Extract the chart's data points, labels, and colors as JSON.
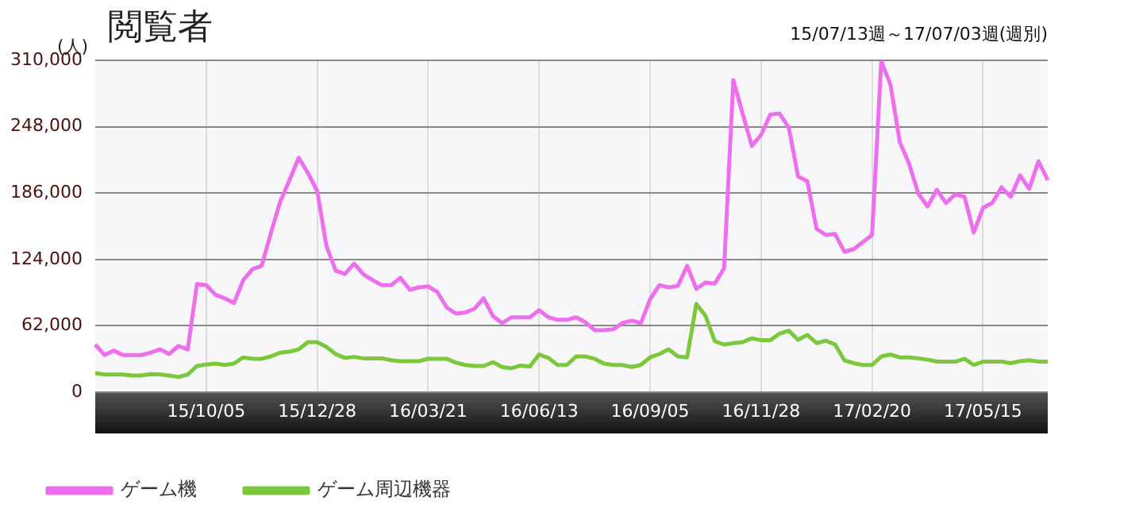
{
  "chart_data": {
    "type": "line",
    "title": "閲覧者",
    "subtitle": "15/07/13週～17/07/03週(週別)",
    "ylabel": "(人)",
    "categories": [
      null,
      null,
      null,
      null,
      null,
      null,
      null,
      null,
      null,
      null,
      null,
      null,
      "15/10/05",
      null,
      null,
      null,
      null,
      null,
      null,
      null,
      null,
      null,
      null,
      null,
      "15/12/28",
      null,
      null,
      null,
      null,
      null,
      null,
      null,
      null,
      null,
      null,
      null,
      "16/03/21",
      null,
      null,
      null,
      null,
      null,
      null,
      null,
      null,
      null,
      null,
      null,
      "16/06/13",
      null,
      null,
      null,
      null,
      null,
      null,
      null,
      null,
      null,
      null,
      null,
      "16/09/05",
      null,
      null,
      null,
      null,
      null,
      null,
      null,
      null,
      null,
      null,
      null,
      "16/11/28",
      null,
      null,
      null,
      null,
      null,
      null,
      null,
      null,
      null,
      null,
      null,
      "17/02/20",
      null,
      null,
      null,
      null,
      null,
      null,
      null,
      null,
      null,
      null,
      null,
      "17/05/15",
      null,
      null,
      null,
      null,
      null,
      null,
      null
    ],
    "series": [
      {
        "name": "ゲーム機",
        "color": "#ee6eee",
        "values": [
          44500,
          34700,
          38700,
          34700,
          34700,
          34700,
          37000,
          40000,
          35600,
          43200,
          40000,
          101000,
          100000,
          91000,
          87700,
          83200,
          104600,
          114800,
          118000,
          149000,
          178000,
          198000,
          219000,
          204700,
          188000,
          136600,
          113500,
          110400,
          120000,
          110000,
          104600,
          100000,
          100000,
          106800,
          95700,
          97900,
          98800,
          93500,
          79200,
          73400,
          74300,
          77900,
          87700,
          71200,
          64500,
          69900,
          69900,
          69900,
          76500,
          69900,
          67600,
          67600,
          69900,
          65400,
          57900,
          57900,
          58700,
          64500,
          66800,
          64500,
          86800,
          100000,
          97900,
          99200,
          118000,
          96600,
          102400,
          101500,
          115700,
          291500,
          260300,
          230000,
          240300,
          259400,
          260300,
          247000,
          201600,
          197100,
          152600,
          146900,
          147700,
          131300,
          133500,
          140200,
          146900,
          309300,
          287000,
          233600,
          213600,
          185600,
          173500,
          189100,
          176700,
          184700,
          182500,
          149000,
          172200,
          176700,
          191400,
          182500,
          202500,
          190000,
          215800,
          198000
        ]
      },
      {
        "name": "ゲーム周辺機器",
        "color": "#7cc83c",
        "values": [
          17800,
          16500,
          16500,
          16500,
          15600,
          15600,
          16900,
          16500,
          15600,
          14200,
          16500,
          24500,
          25800,
          26700,
          25400,
          26700,
          32500,
          31200,
          31200,
          33400,
          36900,
          37800,
          40000,
          46700,
          46700,
          42300,
          35600,
          32000,
          32900,
          31600,
          31600,
          31600,
          29800,
          28900,
          28900,
          28900,
          31200,
          31200,
          31200,
          27600,
          25400,
          24500,
          24500,
          28000,
          23600,
          22300,
          24900,
          24000,
          35200,
          32000,
          25400,
          25400,
          33400,
          33400,
          31200,
          26700,
          25400,
          25400,
          23600,
          25400,
          32500,
          35600,
          40000,
          33400,
          32500,
          82300,
          71200,
          47600,
          44500,
          45800,
          46700,
          50300,
          48500,
          48500,
          54700,
          57400,
          48900,
          53400,
          45800,
          48100,
          44500,
          29800,
          27100,
          25400,
          25400,
          33400,
          35200,
          32500,
          32500,
          31600,
          30300,
          28500,
          28500,
          28500,
          31200,
          25400,
          28500,
          28500,
          28500,
          27100,
          28900,
          29800,
          28500,
          28500
        ]
      }
    ],
    "ylim": [
      0,
      310000
    ],
    "yticks": [
      {
        "value": 0,
        "label": "0"
      },
      {
        "value": 62000,
        "label": "62,000"
      },
      {
        "value": 124000,
        "label": "124,000"
      },
      {
        "value": 186000,
        "label": "186,000"
      },
      {
        "value": 248000,
        "label": "248,000"
      },
      {
        "value": 310000,
        "label": "310,000"
      }
    ],
    "grid": true,
    "legend": "bottom",
    "marker": "none",
    "line_style": "solid"
  }
}
